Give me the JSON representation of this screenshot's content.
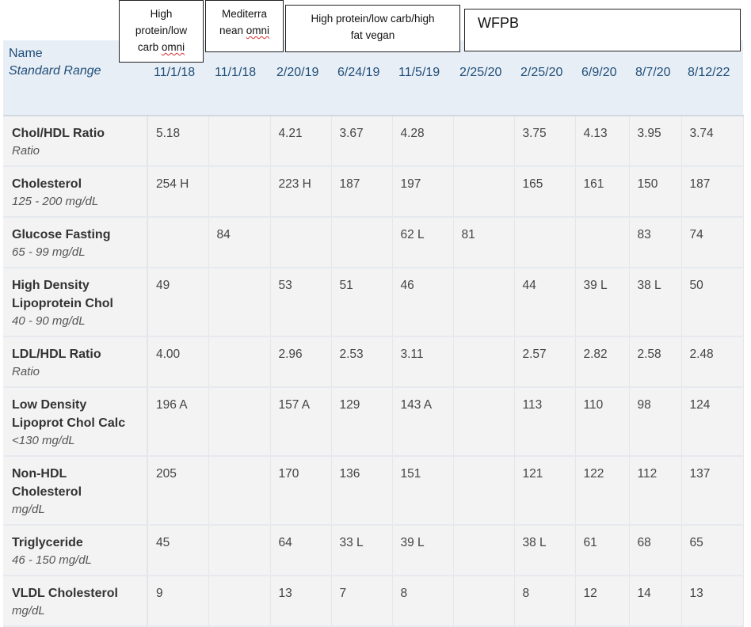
{
  "diet_labels": [
    {
      "line1": "High",
      "line2": "protein/low",
      "line3_a": "carb ",
      "line3_b": "omni"
    },
    {
      "line1_a": "Mediterra",
      "line2_a": "nean ",
      "line2_b": "omni"
    },
    {
      "line1": "High protein/low carb/high",
      "line2": "fat vegan"
    },
    {
      "text": "WFPB"
    }
  ],
  "header": {
    "name_label": "Name",
    "range_label": "Standard Range",
    "dates": [
      "11/1/18",
      "11/1/18",
      "2/20/19",
      "6/24/19",
      "11/5/19",
      "2/25/20",
      "2/25/20",
      "6/9/20",
      "8/7/20",
      "8/12/22"
    ]
  },
  "rows": [
    {
      "name": [
        "Chol/HDL Ratio"
      ],
      "range": "Ratio",
      "values": [
        "5.18",
        "",
        "4.21",
        "3.67",
        "4.28",
        "",
        "3.75",
        "4.13",
        "3.95",
        "3.74"
      ],
      "abnormal": []
    },
    {
      "name": [
        "Cholesterol"
      ],
      "range": "125 - 200 mg/dL",
      "values": [
        "254 H",
        "",
        "223 H",
        "187",
        "197",
        "",
        "165",
        "161",
        "150",
        "187"
      ],
      "abnormal": []
    },
    {
      "name": [
        "Glucose Fasting"
      ],
      "range": "65 - 99 mg/dL",
      "values": [
        "",
        "84",
        "",
        "",
        "62 L",
        "81",
        "",
        "",
        "83",
        "74"
      ],
      "abnormal": []
    },
    {
      "name": [
        "High Density",
        "Lipoprotein Chol"
      ],
      "range": "40 - 90 mg/dL",
      "values": [
        "49",
        "",
        "53",
        "51",
        "46",
        "",
        "44",
        "39 L",
        "38 L",
        "50"
      ],
      "abnormal": []
    },
    {
      "name": [
        "LDL/HDL Ratio"
      ],
      "range": "Ratio",
      "values": [
        "4.00",
        "",
        "2.96",
        "2.53",
        "3.11",
        "",
        "2.57",
        "2.82",
        "2.58",
        "2.48"
      ],
      "abnormal": []
    },
    {
      "name": [
        "Low Density",
        "Lipoprot Chol Calc"
      ],
      "range": "<130 mg/dL",
      "values": [
        "196 A",
        "",
        "157 A",
        "129",
        "143 A",
        "",
        "113",
        "110",
        "98",
        "124"
      ],
      "abnormal": [
        0,
        2,
        4
      ]
    },
    {
      "name": [
        "Non-HDL",
        "Cholesterol"
      ],
      "range": "mg/dL",
      "values": [
        "205",
        "",
        "170",
        "136",
        "151",
        "",
        "121",
        "122",
        "112",
        "137"
      ],
      "abnormal": []
    },
    {
      "name": [
        "Triglyceride"
      ],
      "range": "46 - 150 mg/dL",
      "values": [
        "45",
        "",
        "64",
        "33 L",
        "39 L",
        "",
        "38 L",
        "61",
        "68",
        "65"
      ],
      "abnormal": []
    },
    {
      "name": [
        "VLDL Cholesterol"
      ],
      "range": "mg/dL",
      "values": [
        "9",
        "",
        "13",
        "7",
        "8",
        "",
        "8",
        "12",
        "14",
        "13"
      ],
      "abnormal": []
    }
  ],
  "colors": {
    "header_bg": "#e8eef5",
    "header_text": "#1f4e79",
    "abnormal_text": "#c0392b",
    "row_bg": "#f3f3f3"
  }
}
